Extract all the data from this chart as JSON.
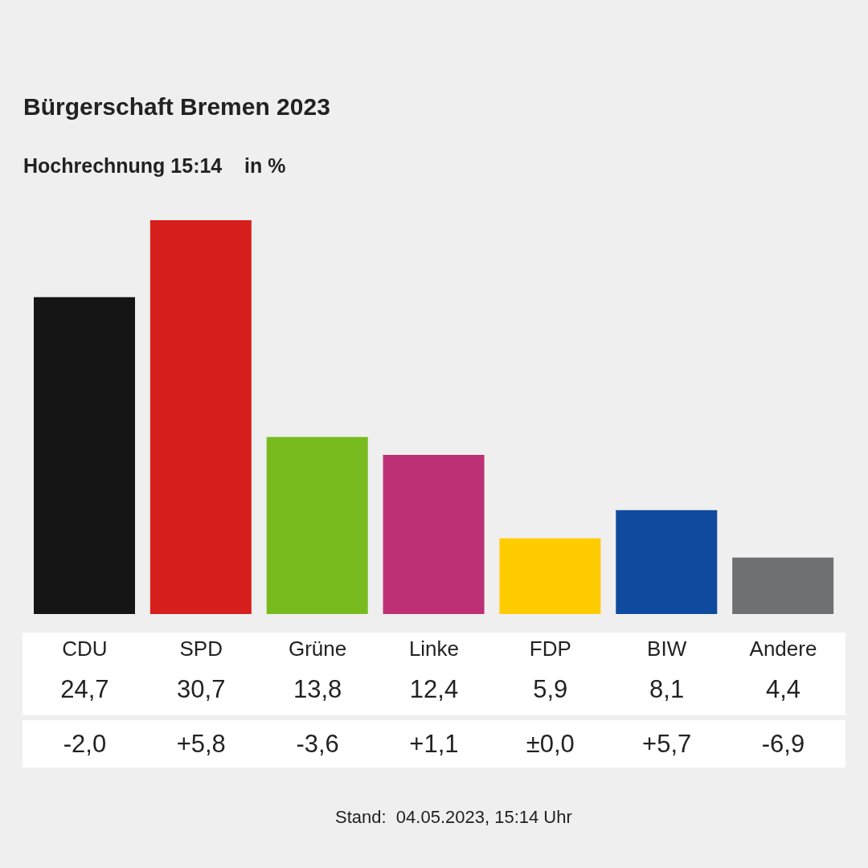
{
  "chart_data": {
    "type": "bar",
    "title": "Bürgerschaft Bremen 2023",
    "subtitle": "Hochrechnung 15:14    in %",
    "categories": [
      "CDU",
      "SPD",
      "Grüne",
      "Linke",
      "FDP",
      "BIW",
      "Andere"
    ],
    "values": [
      24.7,
      30.7,
      13.8,
      12.4,
      5.9,
      8.1,
      4.4
    ],
    "colors": [
      "#151515",
      "#d71f1d",
      "#78bb1e",
      "#be3075",
      "#ffcc00",
      "#0f4a9e",
      "#6f7073"
    ],
    "value_labels": [
      "24,7",
      "30,7",
      "13,8",
      "12,4",
      "5,9",
      "8,1",
      "4,4"
    ],
    "annotations": [
      "-2,0",
      "+5,8",
      "-3,6",
      "+1,1",
      "±0,0",
      "+5,7",
      "-6,9",
      "Stand:  04.05.2023, 15:14 Uhr"
    ]
  }
}
